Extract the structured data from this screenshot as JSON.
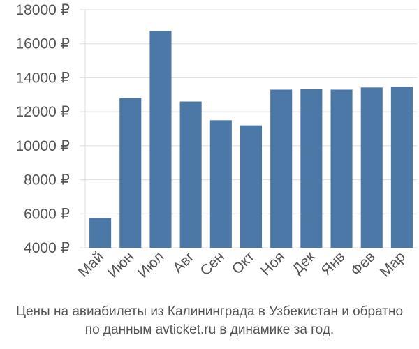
{
  "chart_data": {
    "type": "bar",
    "title": "",
    "xlabel": "",
    "ylabel": "",
    "categories": [
      "Май",
      "Июн",
      "Июл",
      "Авг",
      "Сен",
      "Окт",
      "Ноя",
      "Дек",
      "Янв",
      "Фев",
      "Мар"
    ],
    "values": [
      5750,
      12800,
      16750,
      12600,
      11500,
      11200,
      13300,
      13320,
      13300,
      13430,
      13480
    ],
    "ylim": [
      4000,
      18000
    ],
    "yticks": [
      4000,
      6000,
      8000,
      10000,
      12000,
      14000,
      16000,
      18000
    ],
    "ytick_suffix": " ₽",
    "grid": true,
    "bar_color": "#4c78a8",
    "grid_color": "#dddddd"
  },
  "caption": {
    "line1": "Цены на авиабилеты из Калининграда в Узбекистан и обратно",
    "line2": "по данным avticket.ru в динамике за год."
  }
}
